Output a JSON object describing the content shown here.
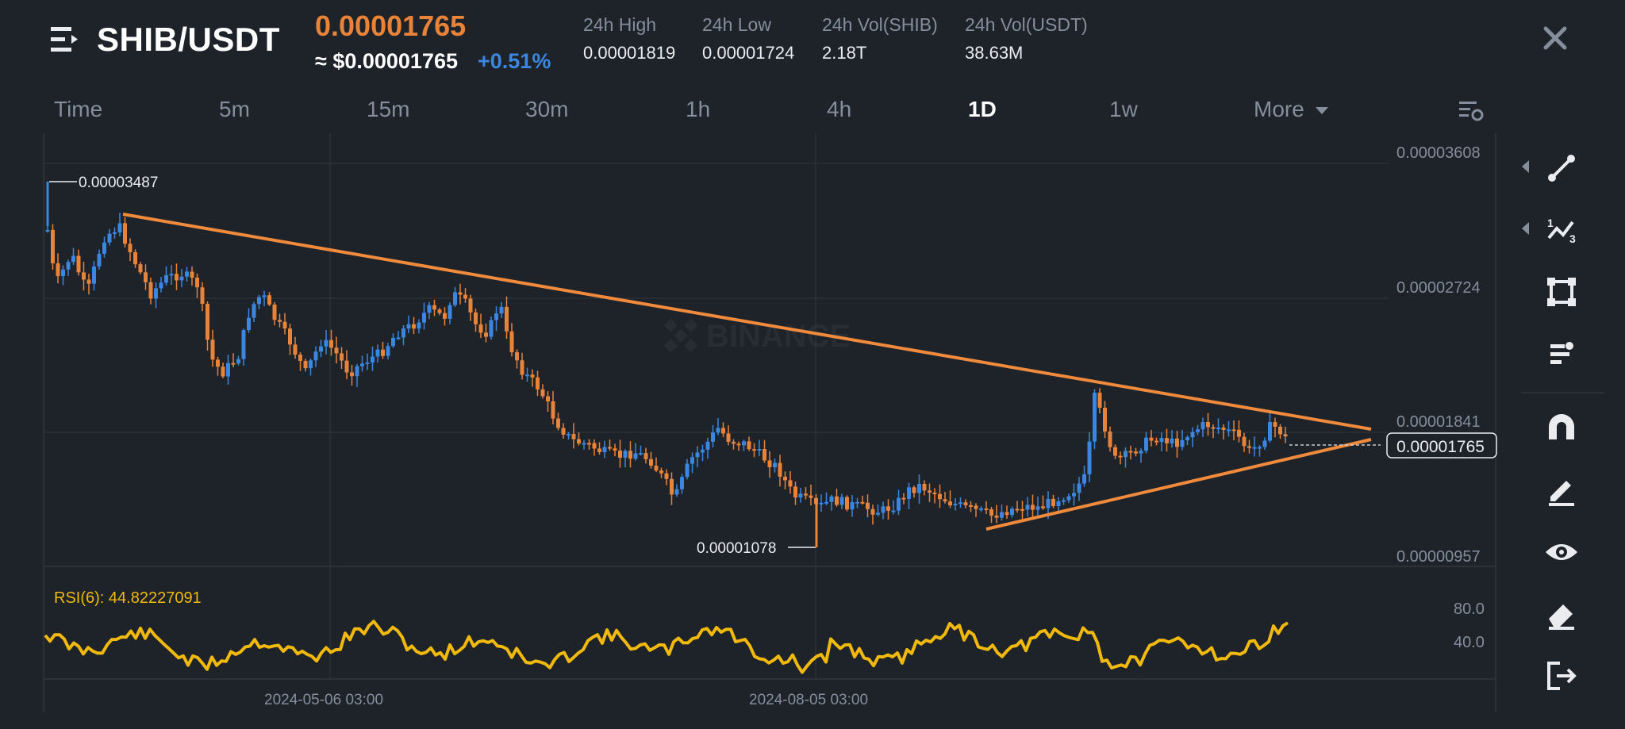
{
  "header": {
    "pair": "SHIB/USDT",
    "last_price": "0.00001765",
    "usd_price": "≈ $0.00001765",
    "change_pct": "+0.51%",
    "stats": [
      {
        "label": "24h High",
        "value": "0.00001819"
      },
      {
        "label": "24h Low",
        "value": "0.00001724"
      },
      {
        "label": "24h Vol(SHIB)",
        "value": "2.18T"
      },
      {
        "label": "24h Vol(USDT)",
        "value": "38.63M"
      }
    ]
  },
  "timeframes": [
    "Time",
    "5m",
    "15m",
    "30m",
    "1h",
    "4h",
    "1D",
    "1w",
    "More"
  ],
  "active_timeframe": "1D",
  "chart": {
    "watermark": "BINANCE",
    "price_axis": [
      "0.00003608",
      "0.00002724",
      "0.00001841",
      "0.00000957"
    ],
    "current_price_label": "0.00001765",
    "high_marker": "0.00003487",
    "low_marker": "0.00001078",
    "time_labels": [
      "2024-05-06 03:00",
      "2024-08-05 03:00"
    ],
    "rsi_label": "RSI(6): 44.82227091",
    "rsi_axis": [
      "80.0",
      "40.0"
    ],
    "colors": {
      "up": "#3b86e0",
      "down": "#e8833a",
      "rsi": "#f0b90b",
      "trendline": "#f08a3c"
    }
  },
  "toolbar": [
    "line-tool-icon",
    "fibonacci-tool-icon",
    "shape-tool-icon",
    "text-tool-icon",
    "magnet-icon",
    "pencil-icon",
    "eye-icon",
    "eraser-icon",
    "exit-icon"
  ]
}
